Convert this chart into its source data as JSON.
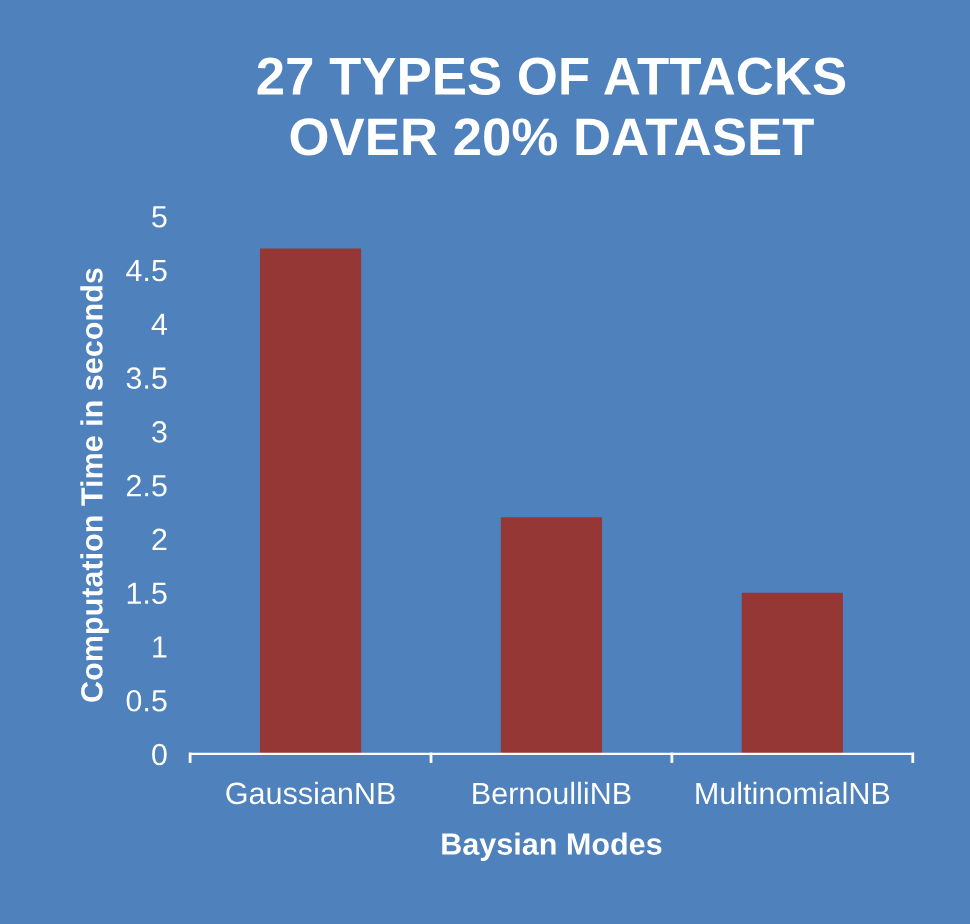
{
  "chart_data": {
    "type": "bar",
    "title": "27 TYPES OF ATTACKS\nOVER 20% DATASET",
    "xlabel": "Baysian Modes",
    "ylabel": "Computation Time in seconds",
    "categories": [
      "GaussianNB",
      "BernoulliNB",
      "MultinomialNB"
    ],
    "values": [
      4.7,
      2.2,
      1.5
    ],
    "color": "#953735",
    "ylim": [
      0,
      5
    ],
    "yticks": [
      0,
      0.5,
      1,
      1.5,
      2,
      2.5,
      3,
      3.5,
      4,
      4.5,
      5
    ],
    "grid": false,
    "legend": false
  }
}
